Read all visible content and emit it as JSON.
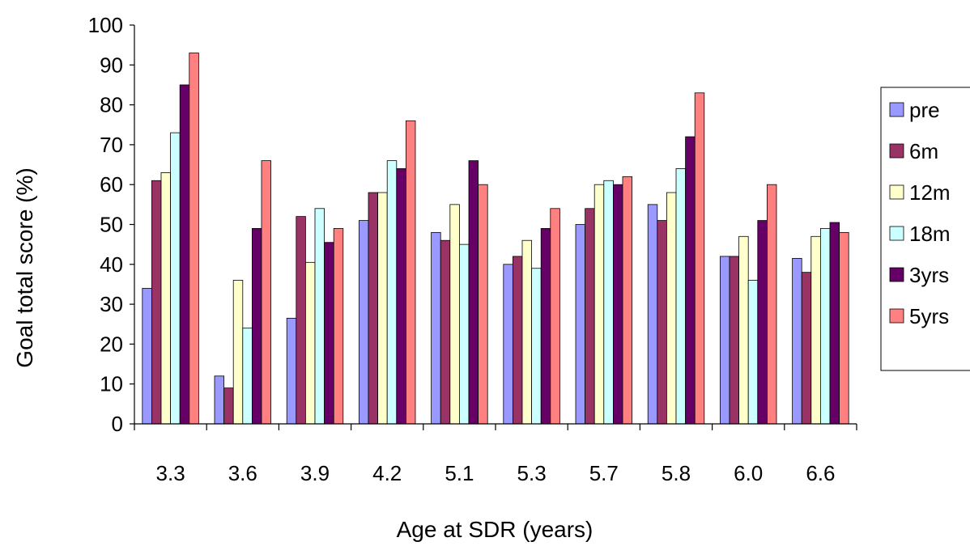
{
  "chart_data": {
    "type": "bar",
    "title": "",
    "xlabel": "Age at SDR (years)",
    "ylabel": "Goal total score (%)",
    "ylim": [
      0,
      100
    ],
    "yticks": [
      "0",
      "10",
      "20",
      "30",
      "40",
      "50",
      "60",
      "70",
      "80",
      "90",
      "100"
    ],
    "categories": [
      "3.3",
      "3.6",
      "3.9",
      "4.2",
      "5.1",
      "5.3",
      "5.7",
      "5.8",
      "6.0",
      "6.6"
    ],
    "legend_position": "right",
    "grid": false,
    "series": [
      {
        "name": "pre",
        "color": "#9999ff",
        "values": [
          34,
          12,
          26.5,
          51,
          48,
          40,
          50,
          55,
          42,
          41.5
        ]
      },
      {
        "name": "6m",
        "color": "#993366",
        "values": [
          61,
          9,
          52,
          58,
          46,
          42,
          54,
          51,
          42,
          38
        ]
      },
      {
        "name": "12m",
        "color": "#ffffcc",
        "values": [
          63,
          36,
          40.5,
          58,
          55,
          46,
          60,
          58,
          47,
          47
        ]
      },
      {
        "name": "18m",
        "color": "#ccffff",
        "values": [
          73,
          24,
          54,
          66,
          45,
          39,
          61,
          64,
          36,
          49
        ]
      },
      {
        "name": "3yrs",
        "color": "#660066",
        "values": [
          85,
          49,
          45.5,
          64,
          66,
          49,
          60,
          72,
          51,
          50.5
        ]
      },
      {
        "name": "5yrs",
        "color": "#ff8080",
        "values": [
          93,
          66,
          49,
          76,
          60,
          54,
          62,
          83,
          60,
          48
        ]
      }
    ]
  }
}
